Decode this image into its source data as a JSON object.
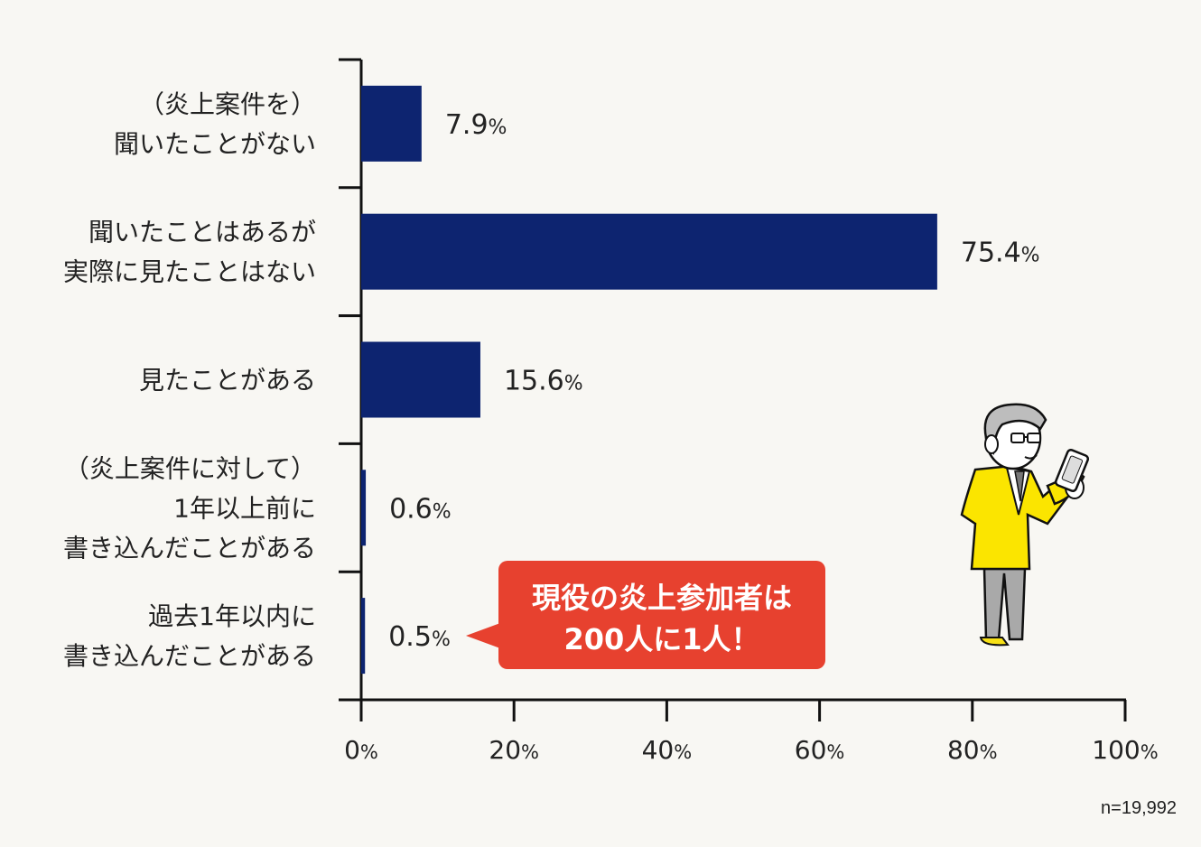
{
  "chart_data": {
    "type": "bar",
    "orientation": "horizontal",
    "categories": [
      [
        "（炎上案件を）",
        "聞いたことがない"
      ],
      [
        "聞いたことはあるが",
        "実際に見たことはない"
      ],
      [
        "見たことがある"
      ],
      [
        "（炎上案件に対して）",
        "1年以上前に",
        "書き込んだことがある"
      ],
      [
        "過去1年以内に",
        "書き込んだことがある"
      ]
    ],
    "values": [
      7.9,
      75.4,
      15.6,
      0.6,
      0.5
    ],
    "value_labels": [
      "7.9",
      "75.4",
      "15.6",
      "0.6",
      "0.5"
    ],
    "unit": "%",
    "xlim": [
      0,
      100
    ],
    "xticks": [
      "0",
      "20",
      "40",
      "60",
      "80",
      "100"
    ],
    "bar_color": "#0d2470",
    "grid": false
  },
  "callout": {
    "line1": "現役の炎上参加者は",
    "line2": "200人に1人！",
    "color": "#e7412f"
  },
  "sample_note": "n=19,992"
}
